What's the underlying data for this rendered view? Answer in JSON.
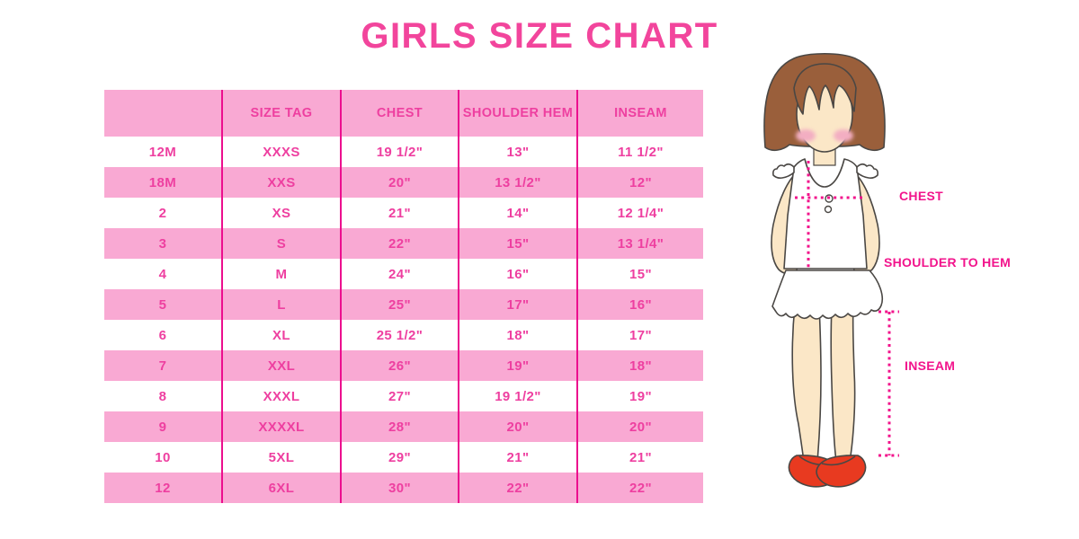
{
  "chart_data": {
    "type": "table",
    "title": "GIRLS SIZE CHART",
    "columns": [
      "",
      "SIZE TAG",
      "CHEST",
      "SHOULDER HEM",
      "INSEAM"
    ],
    "rows": [
      [
        "12M",
        "XXXS",
        "19 1/2\"",
        "13\"",
        "11 1/2\""
      ],
      [
        "18M",
        "XXS",
        "20\"",
        "13 1/2\"",
        "12\""
      ],
      [
        "2",
        "XS",
        "21\"",
        "14\"",
        "12 1/4\""
      ],
      [
        "3",
        "S",
        "22\"",
        "15\"",
        "13 1/4\""
      ],
      [
        "4",
        "M",
        "24\"",
        "16\"",
        "15\""
      ],
      [
        "5",
        "L",
        "25\"",
        "17\"",
        "16\""
      ],
      [
        "6",
        "XL",
        "25 1/2\"",
        "18\"",
        "17\""
      ],
      [
        "7",
        "XXL",
        "26\"",
        "19\"",
        "18\""
      ],
      [
        "8",
        "XXXL",
        "27\"",
        "19 1/2\"",
        "19\""
      ],
      [
        "9",
        "XXXXL",
        "28\"",
        "20\"",
        "20\""
      ],
      [
        "10",
        "5XL",
        "29\"",
        "21\"",
        "21\""
      ],
      [
        "12",
        "6XL",
        "30\"",
        "22\"",
        "22\""
      ]
    ],
    "layout": {
      "header_background": "pink",
      "row_striping": "white/pink alternating",
      "grid": "vertical dividers only"
    }
  },
  "figure": {
    "labels": {
      "chest": "CHEST",
      "shoulder_to_hem": "SHOULDER TO HEM",
      "inseam": "INSEAM"
    }
  },
  "colors": {
    "titlePink": "#f2459c",
    "textPink": "#ee3fa0",
    "rowPink": "#f9a9d3",
    "divider": "#ec0e8e",
    "label": "#f2148c",
    "hair": "#9a5f3b",
    "skin": "#fbe7c7",
    "blush": "#f3aec2",
    "garment": "#ffffff",
    "shoe": "#e83a20",
    "outline": "#4a4744"
  }
}
